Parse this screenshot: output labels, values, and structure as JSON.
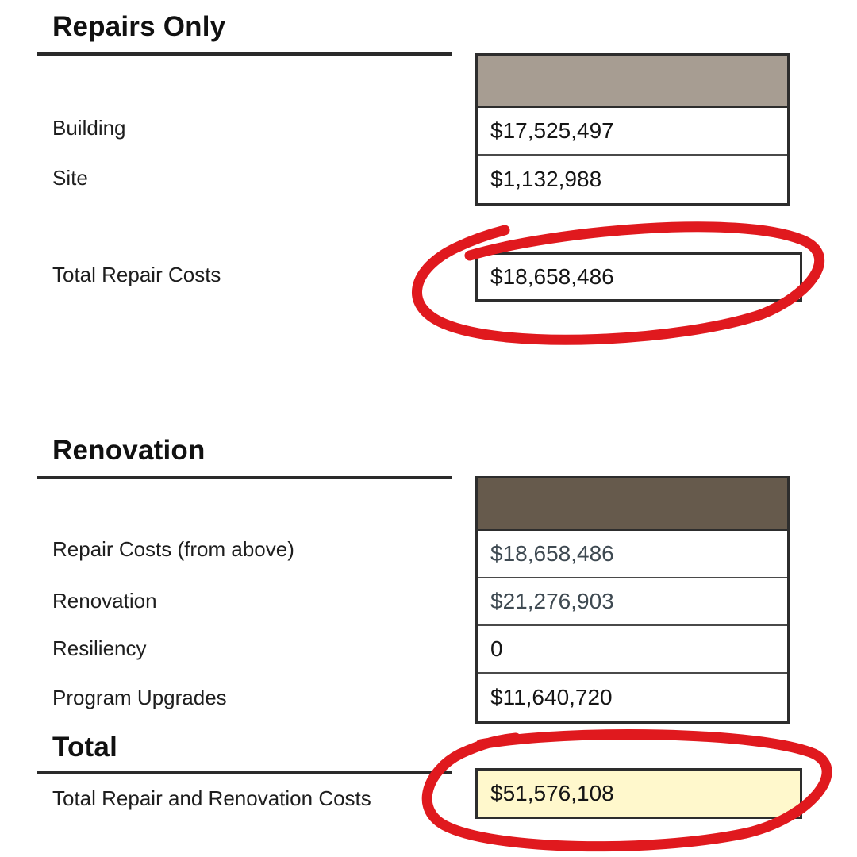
{
  "repairs": {
    "heading": "Repairs Only",
    "header_color": "#a79d92",
    "rows": [
      {
        "label": "Building",
        "value": "$17,525,497"
      },
      {
        "label": "Site",
        "value": "$1,132,988"
      }
    ],
    "total_label": "Total Repair Costs",
    "total_value": "$18,658,486"
  },
  "renovation": {
    "heading": "Renovation",
    "header_color": "#665a4c",
    "rows": [
      {
        "label": "Repair Costs (from above)",
        "value": "$18,658,486"
      },
      {
        "label": "Renovation",
        "value": "$21,276,903"
      },
      {
        "label": "Resiliency",
        "value": "0"
      },
      {
        "label": "Program Upgrades",
        "value": "$11,640,720"
      }
    ]
  },
  "total": {
    "heading": "Total",
    "label": "Total Repair and Renovation Costs",
    "value": "$51,576,108",
    "highlight_color": "#fff8cc"
  },
  "annotation_color": "#e0191e"
}
